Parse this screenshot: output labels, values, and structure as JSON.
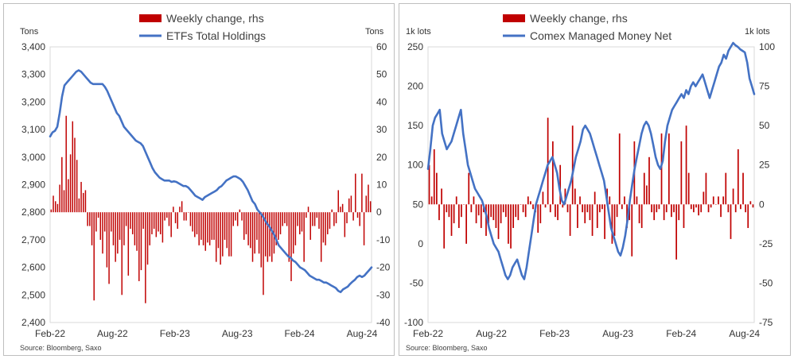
{
  "chart_data": [
    {
      "type": "bar+line",
      "legend": [
        {
          "label": "Weekly change, rhs",
          "kind": "bar",
          "color": "#c00000"
        },
        {
          "label": "ETFs Total Holdings",
          "kind": "line",
          "color": "#4472c4"
        }
      ],
      "left_unit": "Tons",
      "right_unit": "Tons",
      "source": "Source: Bloomberg, Saxo",
      "left_axis": {
        "min": 2400,
        "max": 3400,
        "ticks": [
          "2,400",
          "2,500",
          "2,600",
          "2,700",
          "2,800",
          "2,900",
          "3,000",
          "3,100",
          "3,200",
          "3,300",
          "3,400"
        ],
        "tick_values": [
          2400,
          2500,
          2600,
          2700,
          2800,
          2900,
          3000,
          3100,
          3200,
          3300,
          3400
        ]
      },
      "right_axis": {
        "min": -40,
        "max": 60,
        "ticks": [
          "-40",
          "-30",
          "-20",
          "-10",
          "0",
          "10",
          "20",
          "30",
          "40",
          "50",
          "60"
        ],
        "tick_values": [
          -40,
          -30,
          -20,
          -10,
          0,
          10,
          20,
          30,
          40,
          50,
          60
        ]
      },
      "x_labels": [
        {
          "label": "Feb-22",
          "week": 0
        },
        {
          "label": "Aug-22",
          "week": 26
        },
        {
          "label": "Feb-23",
          "week": 52
        },
        {
          "label": "Aug-23",
          "week": 78
        },
        {
          "label": "Feb-24",
          "week": 104
        },
        {
          "label": "Aug-24",
          "week": 130
        }
      ],
      "x_range": [
        0,
        134
      ],
      "bar_series": {
        "name": "Weekly change, rhs",
        "values": [
          1,
          6,
          4,
          3,
          10,
          20,
          8,
          35,
          12,
          21,
          33,
          27,
          19,
          5,
          11,
          7,
          8,
          -5,
          -5,
          -12,
          -32,
          -7,
          -2,
          -10,
          -15,
          -7,
          -20,
          -26,
          -7,
          -12,
          -18,
          -15,
          -10,
          -30,
          -12,
          -5,
          -23,
          -6,
          -8,
          -12,
          -14,
          -25,
          -21,
          -6,
          -33,
          -19,
          -12,
          -8,
          -6,
          -9,
          -7,
          -8,
          -11,
          -3,
          -2,
          -5,
          -9,
          2,
          -4,
          -6,
          2,
          4,
          -3,
          -3,
          0,
          -5,
          -7,
          -9,
          -8,
          -12,
          -10,
          -12,
          -14,
          -11,
          -12,
          -10,
          -10,
          -18,
          -13,
          -19,
          -16,
          -10,
          -13,
          -16,
          -16,
          -5,
          -3,
          -5,
          1,
          -3,
          -10,
          -8,
          -12,
          -13,
          -18,
          -15,
          -10,
          -15,
          -20,
          -30,
          -16,
          -18,
          -16,
          -18,
          -15,
          -12,
          -10,
          -8,
          -5,
          -4,
          -5,
          -18,
          -25,
          -15,
          -12,
          -5,
          -8,
          -7,
          -18,
          -2,
          2,
          -10,
          -5,
          -5,
          -2,
          -6,
          -18,
          -11,
          -12,
          -8,
          -6,
          1,
          -5,
          -4,
          8,
          2,
          3,
          -9,
          -4,
          5,
          6,
          -3,
          14,
          -2,
          -5,
          14,
          -12,
          6,
          10,
          4
        ]
      },
      "line_series": {
        "name": "ETFs Total Holdings",
        "values": [
          3075,
          3090,
          3095,
          3110,
          3160,
          3220,
          3260,
          3270,
          3280,
          3290,
          3300,
          3310,
          3315,
          3310,
          3300,
          3290,
          3280,
          3270,
          3265,
          3265,
          3265,
          3265,
          3265,
          3255,
          3240,
          3220,
          3200,
          3180,
          3160,
          3150,
          3130,
          3110,
          3100,
          3090,
          3080,
          3070,
          3060,
          3055,
          3050,
          3040,
          3020,
          3000,
          2980,
          2960,
          2945,
          2935,
          2925,
          2920,
          2915,
          2915,
          2915,
          2910,
          2912,
          2910,
          2905,
          2900,
          2895,
          2895,
          2890,
          2880,
          2870,
          2860,
          2855,
          2850,
          2845,
          2855,
          2860,
          2865,
          2870,
          2875,
          2880,
          2890,
          2895,
          2905,
          2915,
          2920,
          2925,
          2930,
          2930,
          2925,
          2920,
          2910,
          2895,
          2880,
          2860,
          2840,
          2830,
          2810,
          2800,
          2790,
          2775,
          2760,
          2750,
          2735,
          2720,
          2700,
          2680,
          2670,
          2660,
          2650,
          2640,
          2635,
          2625,
          2620,
          2610,
          2600,
          2595,
          2590,
          2580,
          2570,
          2565,
          2560,
          2555,
          2555,
          2550,
          2545,
          2545,
          2540,
          2535,
          2530,
          2525,
          2515,
          2510,
          2520,
          2525,
          2530,
          2540,
          2548,
          2555,
          2565,
          2570,
          2565,
          2570,
          2580,
          2590,
          2600
        ]
      }
    },
    {
      "type": "bar+line",
      "legend": [
        {
          "label": "Weekly change, rhs",
          "kind": "bar",
          "color": "#c00000"
        },
        {
          "label": "Comex Managed Money Net",
          "kind": "line",
          "color": "#4472c4"
        }
      ],
      "left_unit": "1k lots",
      "right_unit": "1k lots",
      "source": "Source: Bloomberg, Saxo",
      "left_axis": {
        "min": -100,
        "max": 250,
        "ticks": [
          "-100",
          "-50",
          "0",
          "50",
          "100",
          "150",
          "200",
          "250"
        ],
        "tick_values": [
          -100,
          -50,
          0,
          50,
          100,
          150,
          200,
          250
        ]
      },
      "right_axis": {
        "min": -75,
        "max": 100,
        "ticks": [
          "-75",
          "-50",
          "-25",
          "0",
          "25",
          "50",
          "75",
          "100"
        ],
        "tick_values": [
          -75,
          -50,
          -25,
          0,
          25,
          50,
          75,
          100
        ]
      },
      "x_labels": [
        {
          "label": "Feb-22",
          "week": 0
        },
        {
          "label": "Aug-22",
          "week": 26
        },
        {
          "label": "Feb-23",
          "week": 52
        },
        {
          "label": "Aug-23",
          "week": 78
        },
        {
          "label": "Feb-24",
          "week": 104
        },
        {
          "label": "Aug-24",
          "week": 130
        }
      ],
      "x_range": [
        0,
        134
      ],
      "bar_series": {
        "name": "Weekly change, rhs",
        "values": [
          25,
          5,
          35,
          20,
          -10,
          10,
          -28,
          -5,
          -8,
          -20,
          -12,
          5,
          -15,
          -8,
          0,
          -25,
          20,
          -5,
          5,
          -12,
          -7,
          -15,
          -5,
          -20,
          -12,
          -8,
          -10,
          -15,
          -22,
          -12,
          -5,
          -8,
          -25,
          -28,
          -15,
          -8,
          -10,
          0,
          -5,
          -8,
          5,
          2,
          -3,
          -5,
          -18,
          -12,
          8,
          -2,
          55,
          -5,
          40,
          -8,
          -10,
          25,
          -2,
          10,
          -5,
          -20,
          50,
          10,
          -15,
          5,
          -5,
          -12,
          -5,
          -10,
          -20,
          8,
          -15,
          -5,
          -3,
          -22,
          10,
          5,
          -25,
          -20,
          -8,
          45,
          -3,
          5,
          -15,
          -10,
          -33,
          40,
          5,
          -12,
          -15,
          20,
          12,
          30,
          -5,
          -10,
          -5,
          -3,
          45,
          -10,
          -5,
          45,
          -8,
          -5,
          -35,
          -10,
          40,
          -15,
          50,
          20,
          -3,
          -5,
          -2,
          -7,
          -5,
          8,
          20,
          -5,
          -2,
          5,
          0,
          5,
          -8,
          5,
          20,
          -5,
          -22,
          10,
          -5,
          35,
          -3,
          20,
          -5,
          -15,
          2,
          -2
        ]
      },
      "line_series": {
        "name": "Comex Managed Money Net",
        "values": [
          95,
          120,
          150,
          160,
          165,
          170,
          140,
          130,
          120,
          125,
          130,
          140,
          150,
          160,
          170,
          140,
          120,
          100,
          90,
          80,
          70,
          65,
          60,
          55,
          45,
          35,
          20,
          10,
          0,
          -5,
          -10,
          -20,
          -30,
          -40,
          -45,
          -40,
          -30,
          -25,
          -20,
          -30,
          -40,
          -45,
          -30,
          -10,
          10,
          30,
          50,
          60,
          70,
          80,
          90,
          100,
          105,
          110,
          100,
          90,
          70,
          55,
          50,
          60,
          70,
          80,
          95,
          110,
          120,
          130,
          145,
          150,
          145,
          140,
          130,
          120,
          110,
          100,
          90,
          80,
          60,
          40,
          20,
          10,
          0,
          -10,
          -15,
          -5,
          10,
          30,
          55,
          75,
          95,
          110,
          125,
          140,
          150,
          155,
          150,
          140,
          125,
          110,
          100,
          95,
          105,
          130,
          150,
          160,
          170,
          175,
          180,
          185,
          190,
          185,
          195,
          190,
          200,
          205,
          200,
          205,
          210,
          215,
          205,
          195,
          185,
          195,
          205,
          215,
          225,
          230,
          240,
          235,
          245,
          250,
          255,
          252,
          250,
          247,
          245,
          243,
          230,
          210,
          200,
          190
        ]
      }
    }
  ]
}
